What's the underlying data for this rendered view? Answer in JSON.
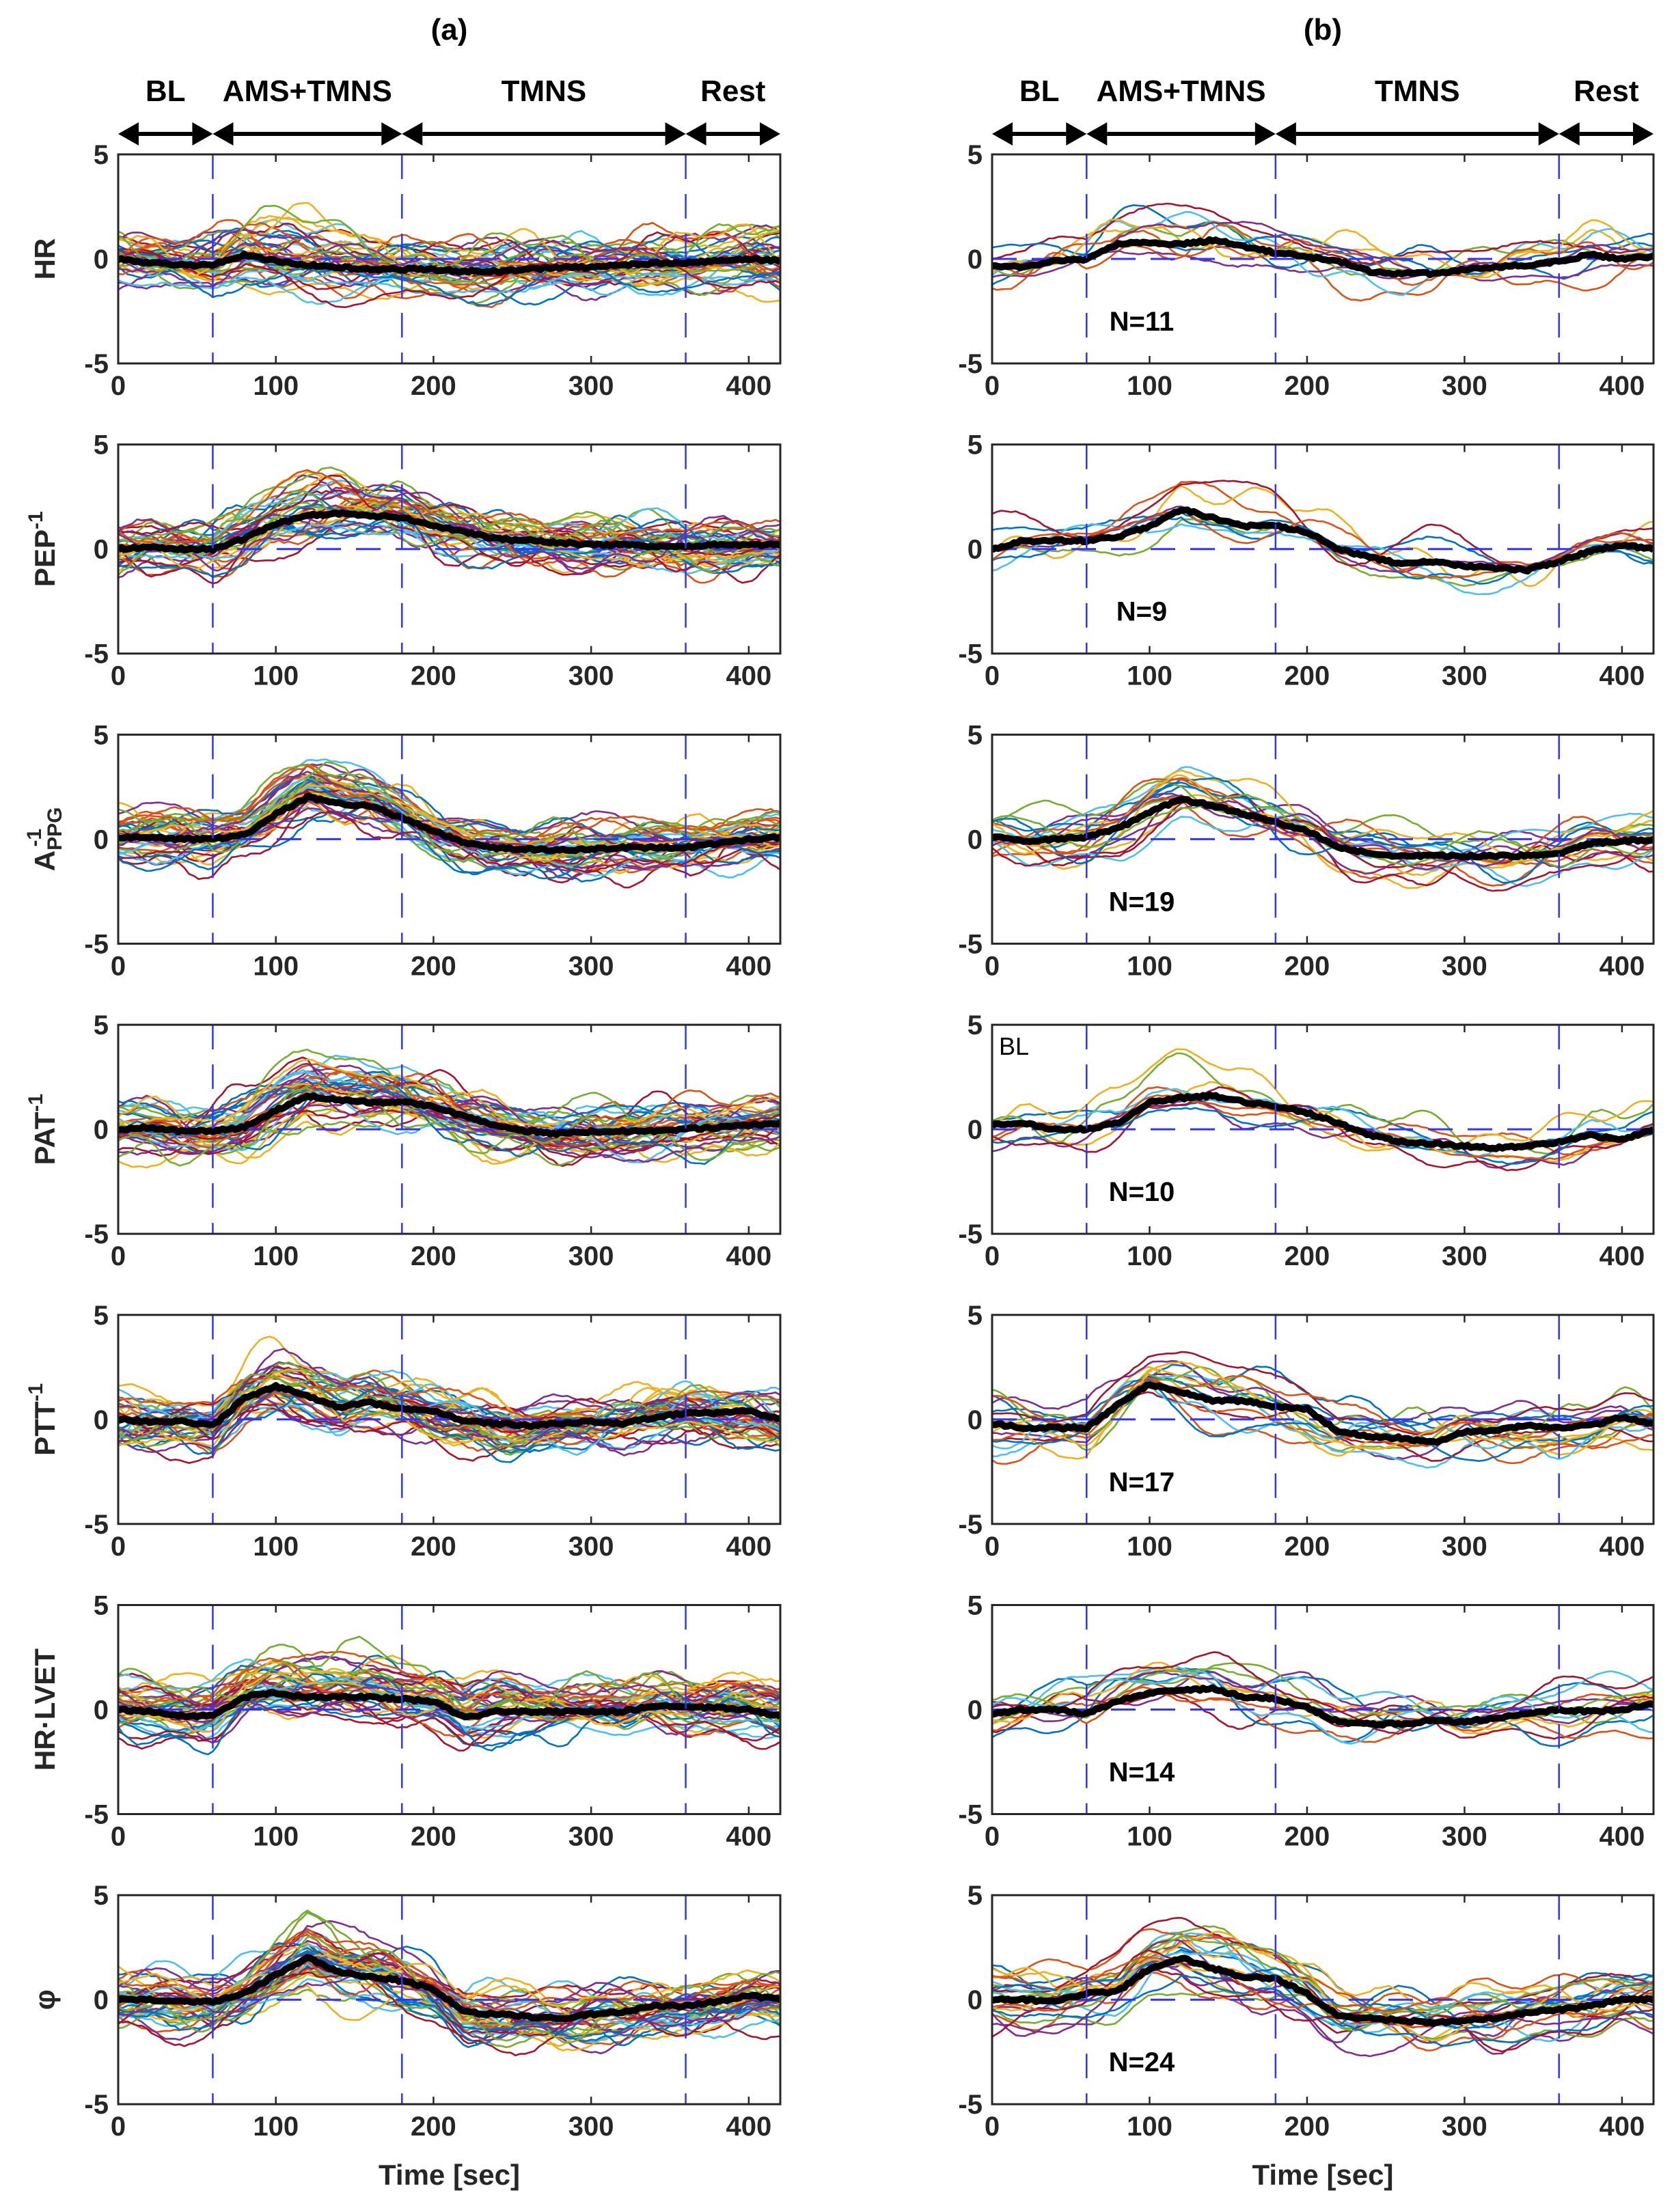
{
  "figure": {
    "columns": [
      {
        "id": "a",
        "title": "(a)"
      },
      {
        "id": "b",
        "title": "(b)"
      }
    ],
    "phases": [
      {
        "label": "BL",
        "start": 0,
        "end": 60
      },
      {
        "label": "AMS+TMNS",
        "start": 60,
        "end": 180
      },
      {
        "label": "TMNS",
        "start": 180,
        "end": 360
      },
      {
        "label": "Rest",
        "start": 360,
        "end": 420
      }
    ],
    "xlabel": "Time [sec]",
    "bl_annotation": "BL"
  },
  "chart_data": {
    "type": "line",
    "x_range": [
      0,
      420
    ],
    "y_range": [
      -5,
      5
    ],
    "x_ticks": [
      0,
      100,
      200,
      300,
      400
    ],
    "y_ticks": [
      -5,
      0,
      5
    ],
    "x_tick_labels": [
      "0",
      "100",
      "200",
      "300",
      "400"
    ],
    "y_tick_labels": [
      "-5",
      "0",
      "5"
    ],
    "phase_boundaries": [
      60,
      180,
      360
    ],
    "reference_line_y": 0,
    "colors": {
      "mean": "#000000",
      "boundary": "#3333ff",
      "traces": [
        "#0072BD",
        "#D95319",
        "#EDB120",
        "#7E2F8E",
        "#77AC30",
        "#4DBEEE",
        "#A2142F"
      ]
    },
    "notes": "Thin colored traces are individual subjects (not individually readable); the mean trace values are approximated from the image at 20-s steps.",
    "mean_x": [
      0,
      20,
      40,
      60,
      80,
      100,
      120,
      140,
      160,
      180,
      200,
      220,
      240,
      260,
      280,
      300,
      320,
      340,
      360,
      380,
      400,
      420
    ],
    "rows": [
      {
        "ylabel": "HR",
        "ylabel_sup": "",
        "ylabel_sub": "",
        "a": {
          "n_traces": 40,
          "spread": 1.2,
          "mean": [
            0,
            -0.2,
            -0.3,
            -0.3,
            0.2,
            -0.1,
            -0.3,
            -0.4,
            -0.5,
            -0.5,
            -0.5,
            -0.6,
            -0.6,
            -0.5,
            -0.4,
            -0.4,
            -0.3,
            -0.2,
            -0.2,
            -0.1,
            0,
            -0.1
          ]
        },
        "b": {
          "n_label": "N=11",
          "n_traces": 11,
          "spread": 1.1,
          "mean": [
            -0.3,
            -0.4,
            -0.1,
            0,
            0.7,
            0.8,
            0.7,
            0.9,
            0.6,
            0.3,
            0.1,
            -0.1,
            -0.6,
            -0.7,
            -0.7,
            -0.5,
            -0.4,
            -0.3,
            -0.1,
            0.2,
            0,
            0.1
          ]
        }
      },
      {
        "ylabel": "PEP",
        "ylabel_sup": "-1",
        "ylabel_sub": "",
        "a": {
          "n_traces": 40,
          "spread": 1.0,
          "mean": [
            0,
            0.1,
            0,
            0,
            0.5,
            1.2,
            1.6,
            1.7,
            1.6,
            1.5,
            1.1,
            0.8,
            0.5,
            0.4,
            0.3,
            0.2,
            0.2,
            0.1,
            0.1,
            0.2,
            0.2,
            0.2
          ]
        },
        "b": {
          "n_label": "N=9",
          "n_traces": 9,
          "spread": 0.9,
          "mean": [
            0,
            0.4,
            0.4,
            0.4,
            0.6,
            1.1,
            1.9,
            1.5,
            1.1,
            1.1,
            0.8,
            0,
            -0.4,
            -0.7,
            -0.6,
            -0.8,
            -0.9,
            -1.0,
            -0.6,
            -0.1,
            0.2,
            0
          ]
        }
      },
      {
        "ylabel": "A",
        "ylabel_sup": "-1",
        "ylabel_sub": "PPG",
        "a": {
          "n_traces": 40,
          "spread": 1.0,
          "mean": [
            0.1,
            0.1,
            0,
            0,
            0.2,
            1.2,
            2.0,
            1.7,
            1.6,
            1.0,
            0.4,
            -0.2,
            -0.4,
            -0.5,
            -0.5,
            -0.5,
            -0.4,
            -0.4,
            -0.4,
            -0.2,
            0,
            0.1
          ]
        },
        "b": {
          "n_label": "N=19",
          "n_traces": 19,
          "spread": 1.0,
          "mean": [
            0.1,
            -0.1,
            0,
            0.1,
            0.5,
            1.3,
            1.9,
            1.6,
            1.2,
            0.8,
            0.4,
            -0.4,
            -0.7,
            -0.8,
            -0.8,
            -0.8,
            -0.8,
            -0.8,
            -0.7,
            -0.2,
            -0.1,
            0
          ]
        }
      },
      {
        "ylabel": "PAT",
        "ylabel_sup": "-1",
        "ylabel_sub": "",
        "a": {
          "n_traces": 40,
          "spread": 1.1,
          "mean": [
            0,
            0.1,
            -0.1,
            -0.1,
            0.1,
            0.9,
            1.6,
            1.4,
            1.3,
            1.3,
            1.1,
            0.6,
            0.2,
            -0.1,
            -0.2,
            -0.1,
            -0.1,
            -0.1,
            0,
            0.1,
            0.2,
            0.3
          ]
        },
        "b": {
          "n_label": "N=10",
          "n_traces": 10,
          "spread": 0.9,
          "mean": [
            0.2,
            0.3,
            0,
            0,
            0.3,
            1.3,
            1.5,
            1.6,
            1.3,
            1.1,
            0.8,
            0.3,
            -0.3,
            -0.6,
            -0.7,
            -0.8,
            -0.9,
            -0.8,
            -0.6,
            -0.3,
            -0.5,
            0
          ]
        }
      },
      {
        "ylabel": "PTT",
        "ylabel_sup": "-1",
        "ylabel_sub": "",
        "a": {
          "n_traces": 40,
          "spread": 1.2,
          "mean": [
            0,
            -0.1,
            -0.1,
            -0.3,
            1.0,
            1.6,
            1.1,
            0.6,
            0.8,
            0.5,
            0.4,
            -0.1,
            -0.2,
            -0.3,
            -0.2,
            -0.1,
            -0.2,
            0.1,
            0.3,
            0.3,
            0.4,
            0
          ]
        },
        "b": {
          "n_label": "N=17",
          "n_traces": 17,
          "spread": 1.2,
          "mean": [
            -0.2,
            -0.4,
            -0.4,
            -0.4,
            0.7,
            1.7,
            1.3,
            0.9,
            0.9,
            0.6,
            0.5,
            -0.6,
            -0.8,
            -0.9,
            -1.1,
            -0.6,
            -0.5,
            -0.3,
            -0.4,
            -0.3,
            0.1,
            -0.2
          ]
        }
      },
      {
        "ylabel": "HR·LVET",
        "ylabel_sup": "",
        "ylabel_sub": "",
        "a": {
          "n_traces": 40,
          "spread": 1.3,
          "mean": [
            0,
            -0.1,
            -0.3,
            -0.3,
            0.6,
            0.8,
            0.6,
            0.6,
            0.6,
            0.5,
            0.4,
            -0.4,
            -0.1,
            -0.1,
            -0.1,
            -0.1,
            -0.1,
            0.2,
            0.1,
            0.1,
            0,
            -0.3
          ]
        },
        "b": {
          "n_label": "N=14",
          "n_traces": 14,
          "spread": 1.2,
          "mean": [
            -0.2,
            0,
            0,
            -0.2,
            0.4,
            0.8,
            0.9,
            1.0,
            0.6,
            0.5,
            0.1,
            -0.6,
            -0.7,
            -0.7,
            -0.5,
            -0.6,
            -0.4,
            -0.2,
            0,
            -0.1,
            0,
            0.3
          ]
        }
      },
      {
        "ylabel": "φ",
        "ylabel_sup": "",
        "ylabel_sub": "",
        "a": {
          "n_traces": 40,
          "spread": 1.3,
          "mean": [
            0,
            0,
            -0.1,
            -0.1,
            0.3,
            1.2,
            2.0,
            1.3,
            1.1,
            0.9,
            0.5,
            -0.6,
            -0.7,
            -0.8,
            -0.9,
            -0.7,
            -0.6,
            -0.3,
            -0.3,
            -0.1,
            0.2,
            0
          ]
        },
        "b": {
          "n_label": "N=24",
          "n_traces": 24,
          "spread": 1.3,
          "mean": [
            0,
            0,
            -0.1,
            0.3,
            0.4,
            1.5,
            2.0,
            1.5,
            1.1,
            1.0,
            0.3,
            -0.8,
            -0.9,
            -1.0,
            -1.1,
            -1.0,
            -0.9,
            -0.6,
            -0.5,
            -0.3,
            0,
            0
          ]
        }
      }
    ]
  }
}
